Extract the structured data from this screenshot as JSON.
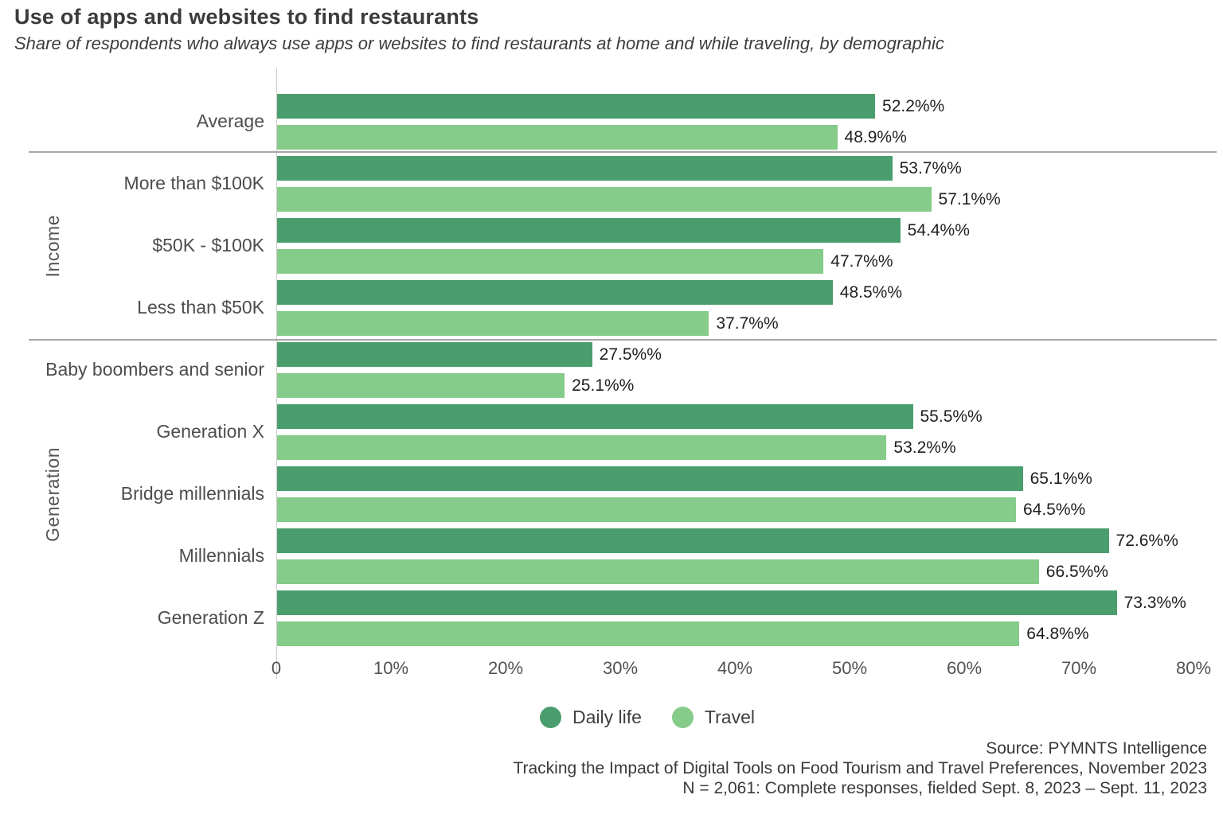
{
  "header": {
    "title": "Use of apps and websites to find restaurants",
    "subtitle": "Share of respondents who always use apps or websites to find restaurants at home and while traveling, by demographic"
  },
  "chart_data": {
    "type": "bar",
    "orientation": "horizontal",
    "axis_max": 80,
    "grid": false,
    "x_ticks": [
      "0",
      "10%",
      "20%",
      "30%",
      "40%",
      "50%",
      "60%",
      "70%",
      "80%"
    ],
    "legend_position": "bottom-center",
    "series_meta": [
      {
        "name": "Daily life",
        "color": "#4a9e6d"
      },
      {
        "name": "Travel",
        "color": "#85cb89"
      }
    ],
    "groups": [
      {
        "name": "",
        "rows": [
          {
            "label": "Average",
            "daily": 52.2,
            "travel": 48.9,
            "daily_label": "52.2%%",
            "travel_label": "48.9%%"
          }
        ]
      },
      {
        "name": "Income",
        "rows": [
          {
            "label": "More than $100K",
            "daily": 53.7,
            "travel": 57.1,
            "daily_label": "53.7%%",
            "travel_label": "57.1%%"
          },
          {
            "label": "$50K - $100K",
            "daily": 54.4,
            "travel": 47.7,
            "daily_label": "54.4%%",
            "travel_label": "47.7%%"
          },
          {
            "label": "Less than $50K",
            "daily": 48.5,
            "travel": 37.7,
            "daily_label": "48.5%%",
            "travel_label": "37.7%%"
          }
        ]
      },
      {
        "name": "Generation",
        "rows": [
          {
            "label": "Baby boombers and senior",
            "daily": 27.5,
            "travel": 25.1,
            "daily_label": "27.5%%",
            "travel_label": "25.1%%"
          },
          {
            "label": "Generation X",
            "daily": 55.5,
            "travel": 53.2,
            "daily_label": "55.5%%",
            "travel_label": "53.2%%"
          },
          {
            "label": "Bridge millennials",
            "daily": 65.1,
            "travel": 64.5,
            "daily_label": "65.1%%",
            "travel_label": "64.5%%"
          },
          {
            "label": "Millennials",
            "daily": 72.6,
            "travel": 66.5,
            "daily_label": "72.6%%",
            "travel_label": "66.5%%"
          },
          {
            "label": "Generation Z",
            "daily": 73.3,
            "travel": 64.8,
            "daily_label": "73.3%%",
            "travel_label": "64.8%%"
          }
        ]
      }
    ]
  },
  "footer": {
    "source_line_1": "Source: PYMNTS Intelligence",
    "source_line_2": "Tracking the Impact of Digital Tools on Food Tourism and Travel Preferences, November 2023",
    "source_line_3": "N = 2,061: Complete responses, fielded Sept. 8, 2023 – Sept. 11, 2023"
  }
}
